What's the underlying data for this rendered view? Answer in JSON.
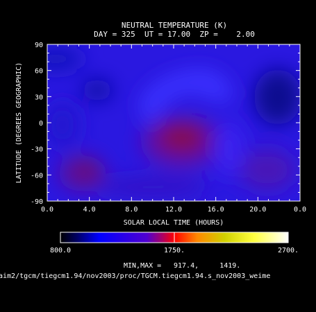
{
  "chart_data": {
    "type": "heatmap",
    "title": "NEUTRAL TEMPERATURE (K)",
    "subtitle": "DAY = 325  UT = 17.00  ZP =    2.00",
    "xlabel": "SOLAR LOCAL TIME (HOURS)",
    "ylabel": "LATITUDE (DEGREES GEOGRAPHIC)",
    "xlim": [
      0,
      24
    ],
    "ylim": [
      -90,
      90
    ],
    "x_ticks": [
      "0.0",
      "4.0",
      "8.0",
      "12.0",
      "16.0",
      "20.0",
      "0.0"
    ],
    "y_ticks": [
      "90",
      "60",
      "30",
      "0",
      "-30",
      "-60",
      "-90"
    ],
    "colorbar": {
      "min": 800.0,
      "max": 2700.0,
      "tick_labels": [
        "800.0",
        "1750.",
        "2700."
      ],
      "colors": [
        "#000000",
        "#0000ff",
        "#6a00c8",
        "#ff0000",
        "#ff9900",
        "#dddd00",
        "#ffff33",
        "#ffffff"
      ]
    },
    "field_min": 917.4,
    "field_max": 1419.0,
    "minmax_label": "MIN,MAX =",
    "minmax_values": "917.4,     1419."
  },
  "file_path": "aim2/tgcm/tiegcm1.94/nov2003/proc/TGCM.tiegcm1.94.s_nov2003_weime"
}
